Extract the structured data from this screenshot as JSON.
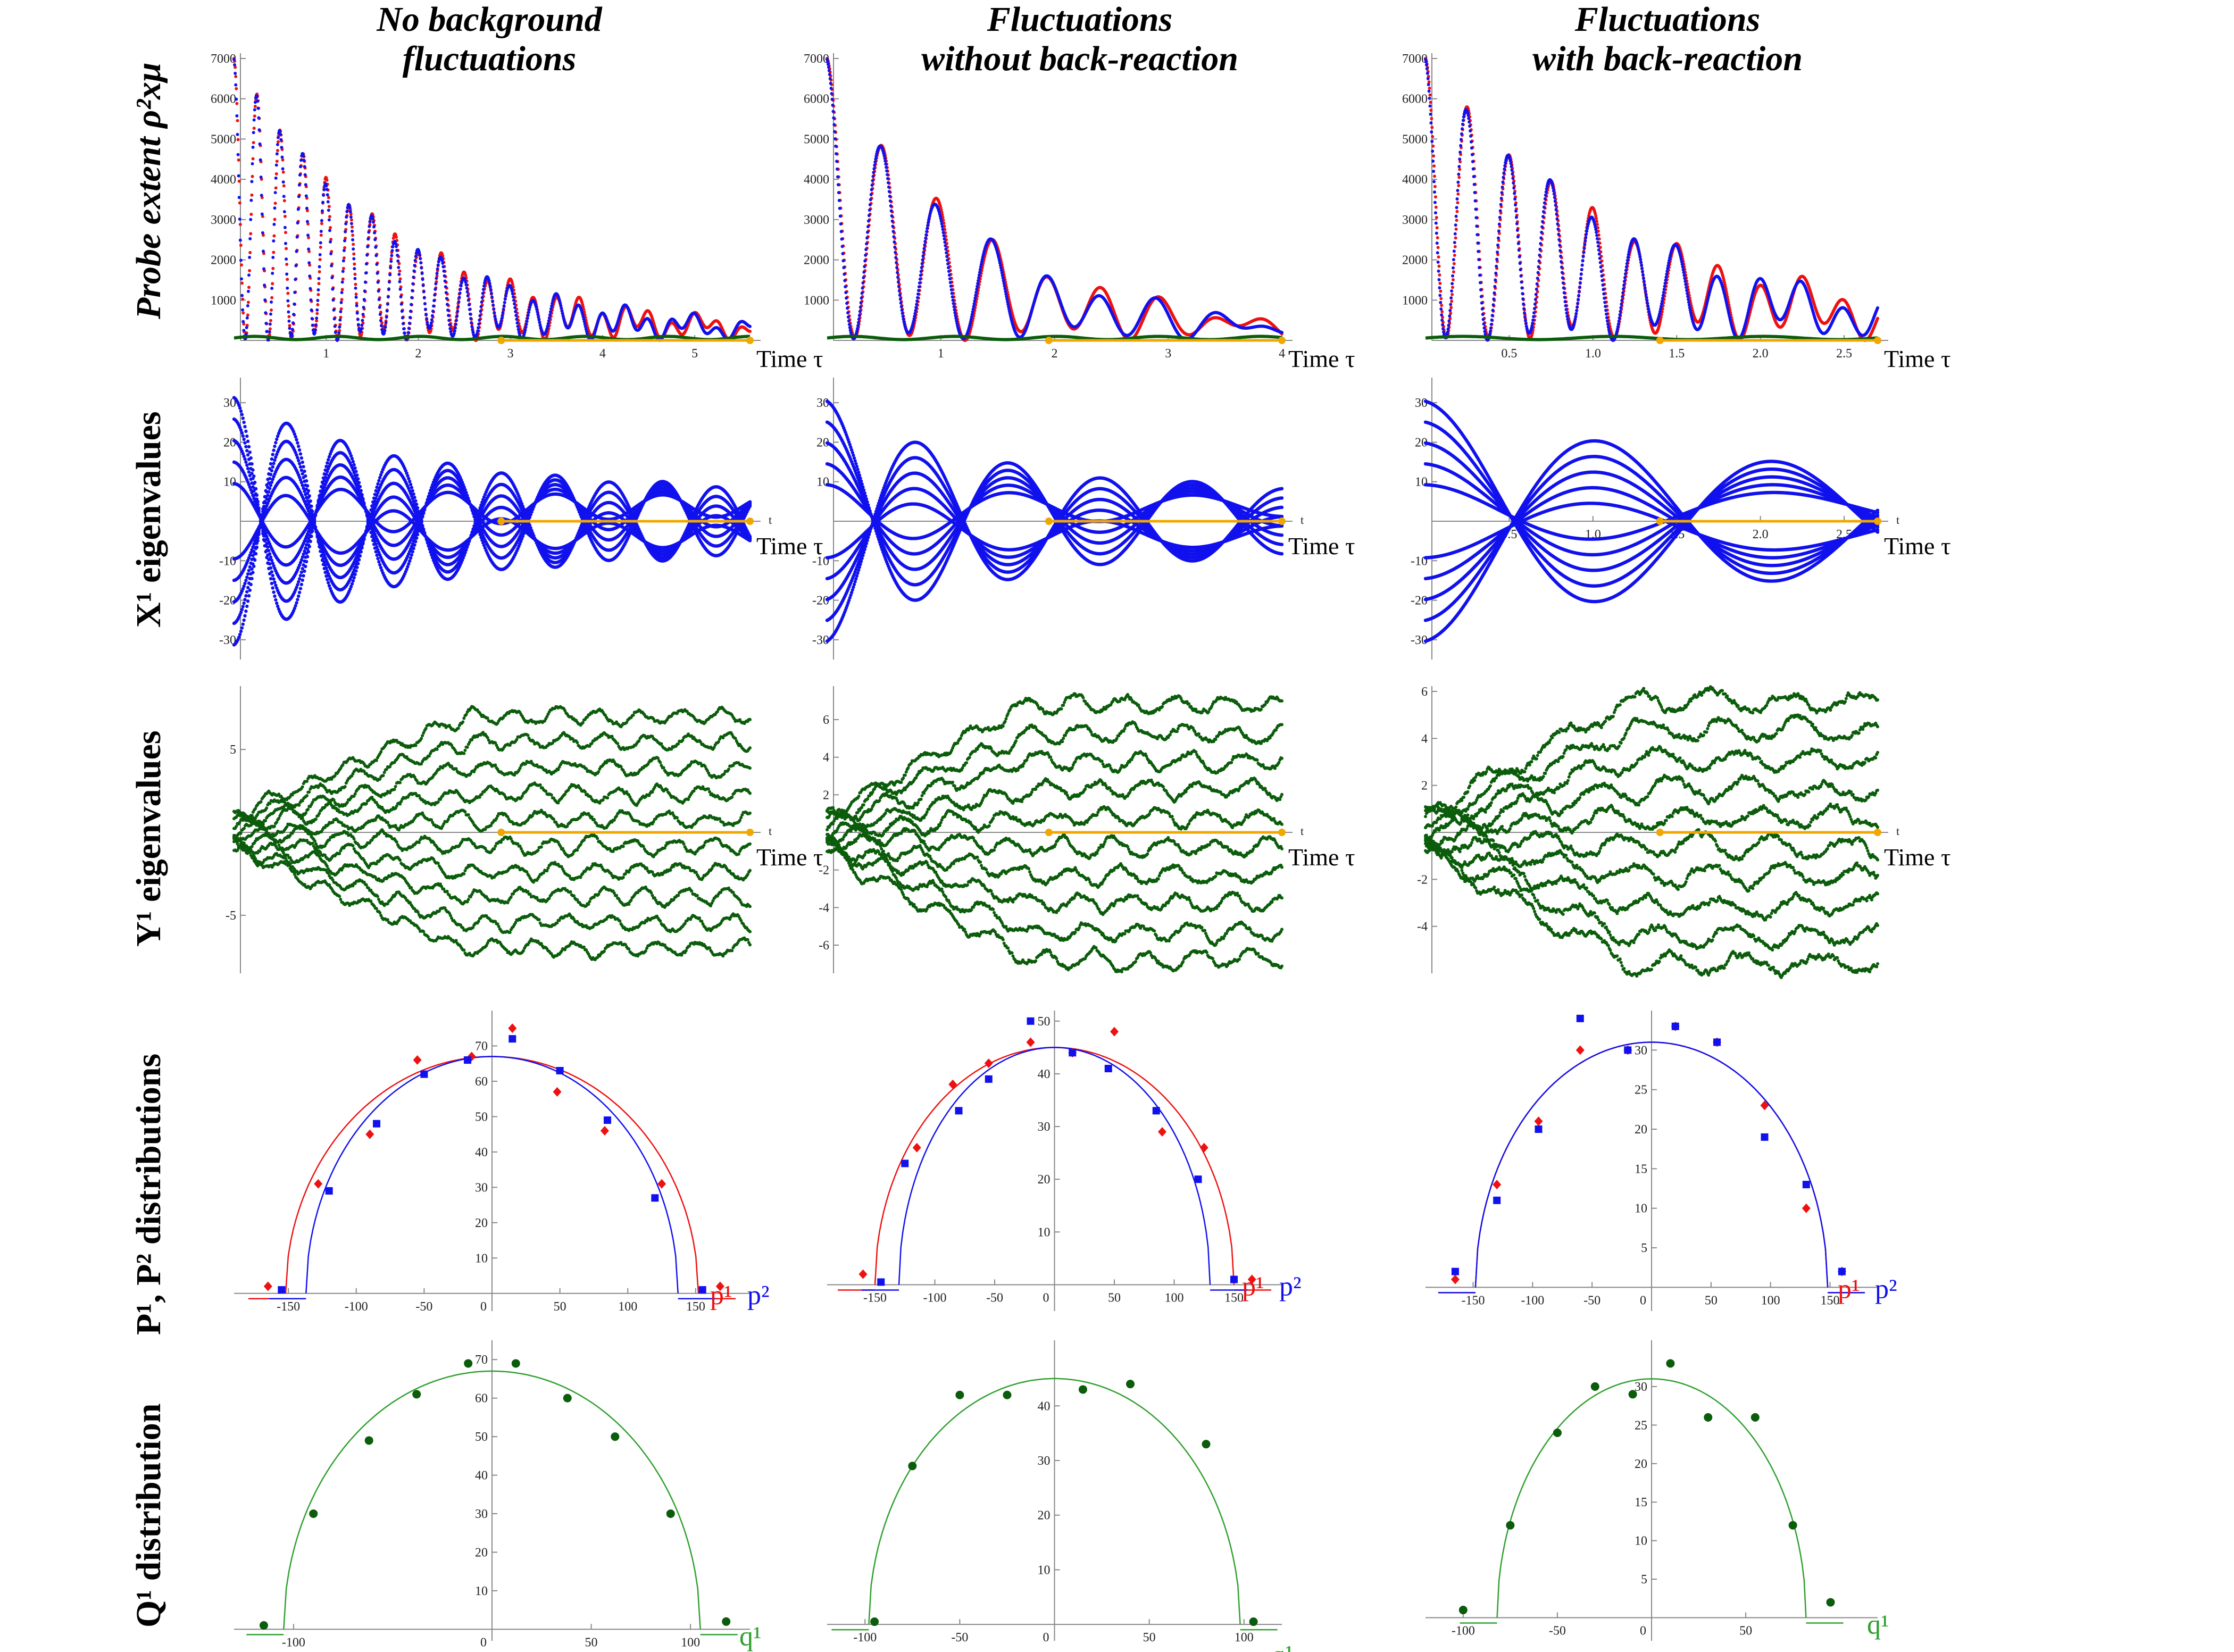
{
  "colors": {
    "red": "#ee1111",
    "blue": "#1111ee",
    "green": "#0b5c0b",
    "lightgreen": "#2fa02f",
    "orange": "#f0a800",
    "axis": "#888888"
  },
  "column_titles": [
    {
      "line1": "No background",
      "line2": "fluctuations"
    },
    {
      "line1": "Fluctuations",
      "line2": "without back-reaction"
    },
    {
      "line1": "Fluctuations",
      "line2": "with back-reaction"
    }
  ],
  "row_labels": [
    {
      "text": "Probe extent ρ²xμ",
      "italic": true
    },
    {
      "text": "X¹ eigenvalues"
    },
    {
      "text": "Y¹ eigenvalues"
    },
    {
      "text": "P¹, P² distributions"
    },
    {
      "text": "Q¹ distribution"
    }
  ],
  "axis_titles": {
    "time": "Time τ",
    "p1": "p¹",
    "p2": "p²",
    "q1": "q¹",
    "t_small": "t"
  },
  "chart_data": [
    {
      "id": "probe-0",
      "type": "line",
      "col": 0,
      "row": 0,
      "xlim": [
        0,
        5.6
      ],
      "ylim": [
        0,
        7000
      ],
      "xticks": [
        "1",
        "2",
        "3",
        "4",
        "5"
      ],
      "yticks": [
        "1000",
        "2000",
        "3000",
        "4000",
        "5000",
        "6000",
        "7000"
      ],
      "xlabel": "Time τ",
      "T": 1.0,
      "decay": 0.42,
      "floor": 350,
      "orange": [
        2.9,
        5.6
      ]
    },
    {
      "id": "probe-1",
      "type": "line",
      "col": 1,
      "row": 0,
      "xlim": [
        0,
        4
      ],
      "ylim": [
        0,
        7000
      ],
      "xticks": [
        "1",
        "2",
        "3",
        "4"
      ],
      "yticks": [
        "1000",
        "2000",
        "3000",
        "4000",
        "5000",
        "6000",
        "7000"
      ],
      "xlabel": "Time τ",
      "T": 1.0,
      "decay": 0.55,
      "floor": 380,
      "orange": [
        1.95,
        4
      ]
    },
    {
      "id": "probe-2",
      "type": "line",
      "col": 2,
      "row": 0,
      "xlim": [
        0,
        2.7
      ],
      "ylim": [
        0,
        7000
      ],
      "xticks": [
        "0.5",
        "1.0",
        "1.5",
        "2.0",
        "2.5"
      ],
      "yticks": [
        "1000",
        "2000",
        "3000",
        "4000",
        "5000",
        "6000",
        "7000"
      ],
      "xlabel": "Time τ",
      "T": 1.0,
      "decay": 0.6,
      "floor": 600,
      "orange": [
        1.4,
        2.7
      ]
    },
    {
      "id": "xeig-0",
      "type": "line",
      "col": 0,
      "row": 1,
      "xlim": [
        0,
        5.6
      ],
      "ylim": [
        -35,
        35
      ],
      "yticks": [
        "-30",
        "-20",
        "-10",
        "10",
        "20",
        "30"
      ],
      "xlabel": "Time τ",
      "n": 10,
      "amp": 34,
      "decay": 0.55,
      "freq": 5.4,
      "orange": [
        2.9,
        5.6
      ]
    },
    {
      "id": "xeig-1",
      "type": "line",
      "col": 1,
      "row": 1,
      "xlim": [
        0,
        4
      ],
      "ylim": [
        -35,
        35
      ],
      "yticks": [
        "-30",
        "-20",
        "-10",
        "10",
        "20",
        "30"
      ],
      "xlabel": "Time τ",
      "n": 10,
      "amp": 33,
      "decay": 0.75,
      "freq": 3.9,
      "orange": [
        1.95,
        4
      ]
    },
    {
      "id": "xeig-2",
      "type": "line",
      "col": 2,
      "row": 1,
      "xlim": [
        0,
        2.7
      ],
      "ylim": [
        -35,
        35
      ],
      "xticks": [
        "0.5",
        "1.0",
        "1.5",
        "2.0",
        "2.5"
      ],
      "yticks": [
        "-30",
        "-20",
        "-10",
        "10",
        "20",
        "30"
      ],
      "xlabel": "Time τ",
      "n": 10,
      "amp": 33,
      "decay": 0.55,
      "freq": 3.0,
      "orange": [
        1.4,
        2.7
      ]
    },
    {
      "id": "yeig-0",
      "type": "line",
      "col": 0,
      "row": 2,
      "xlim": [
        0,
        5.6
      ],
      "ylim": [
        -8.5,
        8.5
      ],
      "yticks": [
        "-5",
        "5"
      ],
      "xlabel": "Time τ",
      "n": 10,
      "spread": 7.0,
      "orange": [
        2.9,
        5.6
      ]
    },
    {
      "id": "yeig-1",
      "type": "line",
      "col": 1,
      "row": 2,
      "xlim": [
        0,
        4
      ],
      "ylim": [
        -7.5,
        7.5
      ],
      "yticks": [
        "-6",
        "-4",
        "-2",
        "2",
        "4",
        "6"
      ],
      "xlabel": "Time τ",
      "n": 10,
      "spread": 6.8,
      "orange": [
        1.95,
        4
      ]
    },
    {
      "id": "yeig-2",
      "type": "line",
      "col": 2,
      "row": 2,
      "xlim": [
        0,
        2.7
      ],
      "ylim": [
        -6,
        6
      ],
      "yticks": [
        "-4",
        "-2",
        "2",
        "4",
        "6"
      ],
      "xlabel": "Time τ",
      "n": 10,
      "spread": 5.6,
      "orange": [
        1.4,
        2.7
      ]
    },
    {
      "id": "pdist-0",
      "type": "scatter",
      "col": 0,
      "row": 3,
      "xlim": [
        -190,
        190
      ],
      "ylim": [
        -5,
        80
      ],
      "xticks": [
        "-150",
        "-100",
        "-50",
        "50",
        "100",
        "150"
      ],
      "yticks": [
        "10",
        "20",
        "30",
        "40",
        "50",
        "60",
        "70"
      ],
      "R1": 152,
      "R2": 137,
      "H": 67,
      "series": [
        {
          "name": "p¹",
          "x": [
            -165,
            -128,
            -90,
            -55,
            -15,
            15,
            48,
            83,
            125,
            168
          ],
          "y": [
            2,
            31,
            45,
            66,
            67,
            75,
            57,
            46,
            31,
            2
          ]
        },
        {
          "name": "p²",
          "x": [
            -155,
            -120,
            -85,
            -50,
            -18,
            15,
            50,
            85,
            120,
            155
          ],
          "y": [
            1,
            29,
            48,
            62,
            66,
            72,
            63,
            49,
            27,
            1
          ]
        }
      ]
    },
    {
      "id": "pdist-1",
      "type": "scatter",
      "col": 1,
      "row": 3,
      "xlim": [
        -190,
        190
      ],
      "ylim": [
        -5,
        52
      ],
      "xticks": [
        "-150",
        "-100",
        "-50",
        "50",
        "100",
        "150"
      ],
      "yticks": [
        "10",
        "20",
        "30",
        "40",
        "50"
      ],
      "R1": 150,
      "R2": 130,
      "H": 45,
      "series": [
        {
          "name": "p¹",
          "x": [
            -160,
            -115,
            -85,
            -55,
            -20,
            15,
            50,
            90,
            125,
            165
          ],
          "y": [
            2,
            26,
            38,
            42,
            46,
            44,
            48,
            29,
            26,
            1
          ]
        },
        {
          "name": "p²",
          "x": [
            -145,
            -125,
            -80,
            -55,
            -20,
            15,
            45,
            85,
            120,
            150
          ],
          "y": [
            0.5,
            23,
            33,
            39,
            50,
            44,
            41,
            33,
            20,
            1
          ]
        }
      ]
    },
    {
      "id": "pdist-2",
      "type": "scatter",
      "col": 2,
      "row": 3,
      "xlim": [
        -190,
        190
      ],
      "ylim": [
        -3,
        35
      ],
      "xticks": [
        "-150",
        "-100",
        "-50",
        "50",
        "100",
        "150"
      ],
      "yticks": [
        "5",
        "10",
        "15",
        "20",
        "25",
        "30"
      ],
      "R1": 148,
      "R2": 148,
      "H": 31,
      "series": [
        {
          "name": "p¹",
          "x": [
            -165,
            -130,
            -95,
            -60,
            -20,
            20,
            55,
            95,
            130,
            160
          ],
          "y": [
            1,
            13,
            21,
            30,
            30,
            33,
            31,
            23,
            10,
            2
          ]
        },
        {
          "name": "p²",
          "x": [
            -165,
            -130,
            -95,
            -60,
            -20,
            20,
            55,
            95,
            130,
            160
          ],
          "y": [
            2,
            11,
            20,
            34,
            30,
            33,
            31,
            19,
            13,
            2
          ]
        }
      ]
    },
    {
      "id": "qdist-0",
      "type": "scatter",
      "col": 0,
      "row": 4,
      "xlim": [
        -130,
        130
      ],
      "ylim": [
        -3,
        75
      ],
      "xticks": [
        "-100",
        "50",
        "100"
      ],
      "yticks": [
        "10",
        "20",
        "30",
        "40",
        "50",
        "60",
        "70"
      ],
      "R": 105,
      "H": 67,
      "series": [
        {
          "name": "q¹",
          "x": [
            -115,
            -90,
            -62,
            -38,
            -12,
            12,
            38,
            62,
            90,
            118
          ],
          "y": [
            1,
            30,
            49,
            61,
            69,
            69,
            60,
            50,
            30,
            2
          ]
        }
      ]
    },
    {
      "id": "qdist-1",
      "type": "scatter",
      "col": 1,
      "row": 4,
      "xlim": [
        -120,
        120
      ],
      "ylim": [
        -3,
        52
      ],
      "xticks": [
        "-100",
        "-50",
        "50",
        "100"
      ],
      "yticks": [
        "10",
        "20",
        "30",
        "40"
      ],
      "R": 98,
      "H": 45,
      "series": [
        {
          "name": "q¹",
          "x": [
            -95,
            -75,
            -50,
            -25,
            15,
            40,
            80,
            105
          ],
          "y": [
            0.5,
            29,
            42,
            42,
            43,
            44,
            33,
            0.5
          ]
        }
      ]
    },
    {
      "id": "qdist-2",
      "type": "scatter",
      "col": 2,
      "row": 4,
      "xlim": [
        -120,
        120
      ],
      "ylim": [
        -3,
        36
      ],
      "xticks": [
        "-100",
        "-50",
        "50"
      ],
      "yticks": [
        "5",
        "10",
        "15",
        "20",
        "25",
        "30"
      ],
      "R": 82,
      "H": 31,
      "series": [
        {
          "name": "q¹",
          "x": [
            -100,
            -75,
            -50,
            -30,
            -10,
            10,
            30,
            55,
            75,
            95
          ],
          "y": [
            1,
            12,
            24,
            30,
            29,
            33,
            26,
            26,
            12,
            2
          ]
        }
      ]
    }
  ]
}
